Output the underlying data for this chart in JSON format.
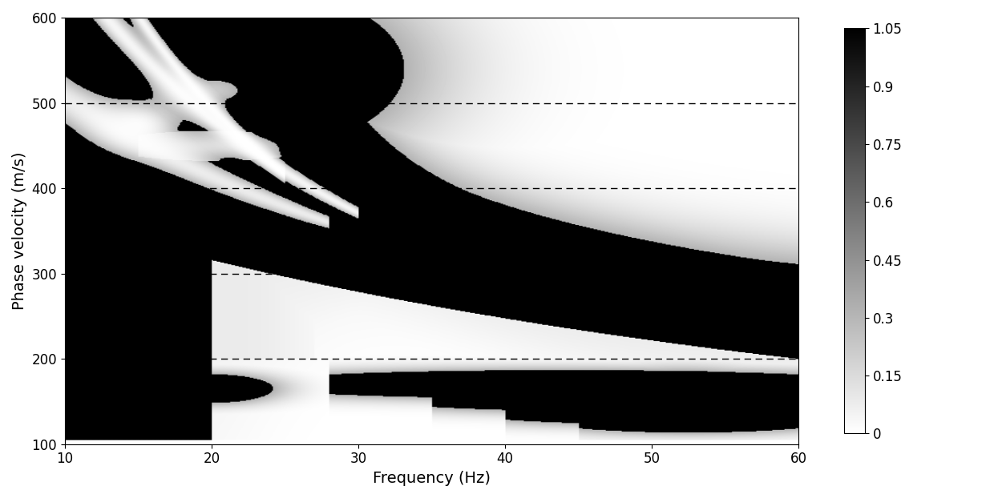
{
  "xlim": [
    10,
    60
  ],
  "ylim": [
    100,
    600
  ],
  "xlabel": "Frequency (Hz)",
  "ylabel": "Phase velocity (m/s)",
  "xlabel_fontsize": 14,
  "ylabel_fontsize": 14,
  "xticks": [
    10,
    20,
    30,
    40,
    50,
    60
  ],
  "yticks": [
    100,
    200,
    300,
    400,
    500,
    600
  ],
  "dashed_lines": [
    200,
    300,
    400,
    500
  ],
  "colorbar_ticks": [
    0,
    0.15,
    0.3,
    0.45,
    0.6,
    0.75,
    0.9,
    1.05
  ],
  "vmin": 0,
  "vmax": 1.05,
  "figsize": [
    12.4,
    6.22
  ],
  "dpi": 100,
  "background_color": "white",
  "cmap": "binary",
  "tick_fontsize": 12
}
